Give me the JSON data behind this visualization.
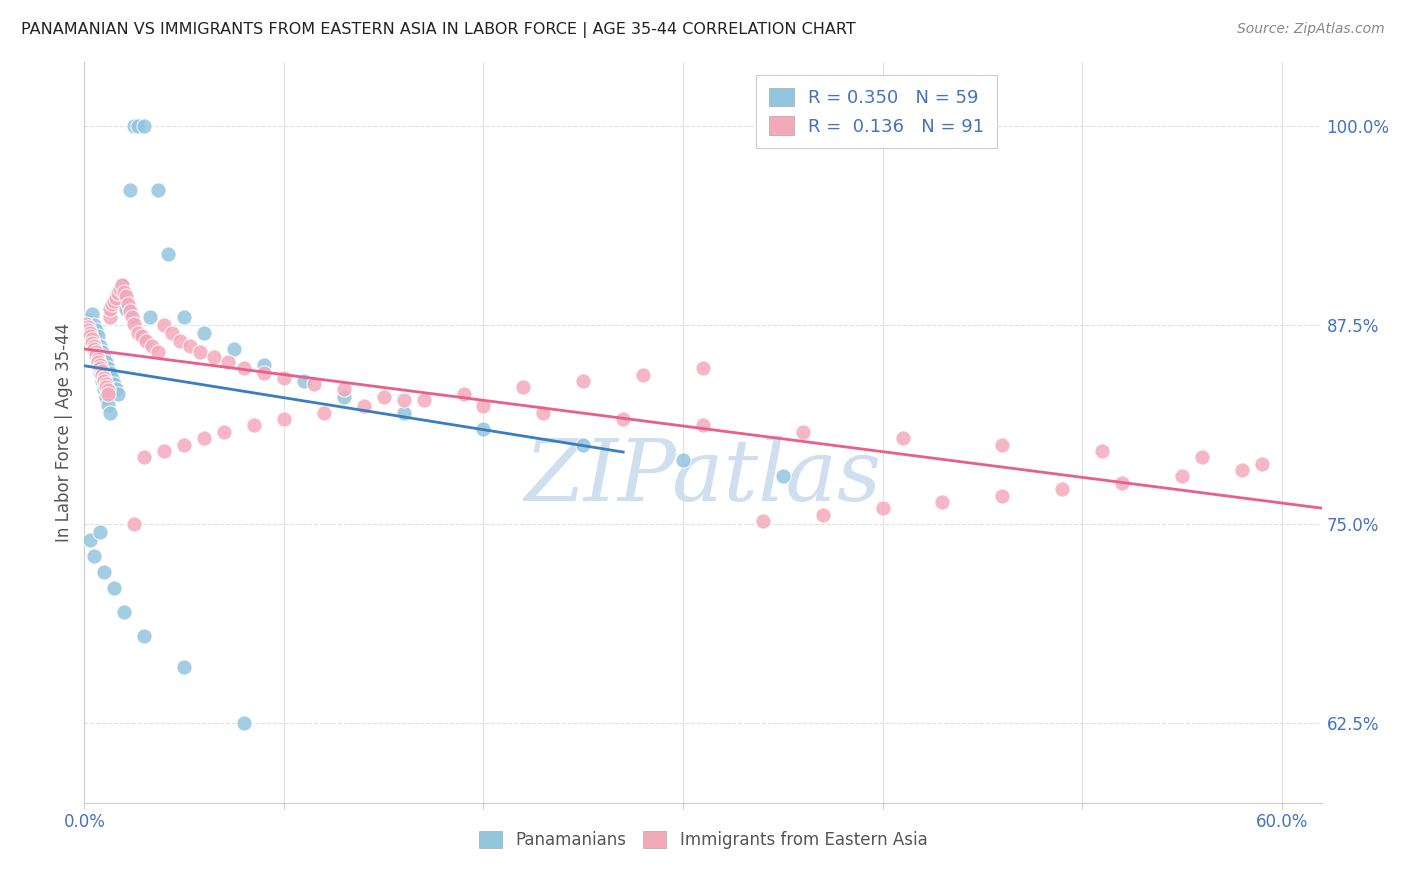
{
  "title": "PANAMANIAN VS IMMIGRANTS FROM EASTERN ASIA IN LABOR FORCE | AGE 35-44 CORRELATION CHART",
  "source": "Source: ZipAtlas.com",
  "ylabel": "In Labor Force | Age 35-44",
  "xlim": [
    0.0,
    0.62
  ],
  "ylim": [
    0.575,
    1.04
  ],
  "xtick_positions": [
    0.0,
    0.1,
    0.2,
    0.3,
    0.4,
    0.5,
    0.6
  ],
  "xtick_labels": [
    "0.0%",
    "",
    "",
    "",
    "",
    "",
    "60.0%"
  ],
  "ytick_positions": [
    0.625,
    0.75,
    0.875,
    1.0
  ],
  "ytick_labels": [
    "62.5%",
    "75.0%",
    "87.5%",
    "100.0%"
  ],
  "blue_R": 0.35,
  "blue_N": 59,
  "pink_R": 0.136,
  "pink_N": 91,
  "blue_color": "#92c5de",
  "pink_color": "#f4a9bb",
  "blue_line_color": "#3a7ebe",
  "pink_line_color": "#e8608a",
  "legend_text_color": "#4472c4",
  "title_color": "#222222",
  "source_color": "#888888",
  "ylabel_color": "#555555",
  "axis_tick_color": "#4472c4",
  "grid_color": "#e0e0e0",
  "watermark": "ZIPatlas",
  "watermark_color": "#d0dff0",
  "background_color": "#ffffff",
  "blue_scatter_x": [
    0.001,
    0.002,
    0.003,
    0.003,
    0.004,
    0.004,
    0.005,
    0.005,
    0.006,
    0.006,
    0.007,
    0.007,
    0.008,
    0.008,
    0.009,
    0.009,
    0.01,
    0.01,
    0.011,
    0.011,
    0.012,
    0.012,
    0.013,
    0.013,
    0.014,
    0.015,
    0.016,
    0.017,
    0.018,
    0.019,
    0.02,
    0.021,
    0.023,
    0.025,
    0.027,
    0.03,
    0.033,
    0.037,
    0.042,
    0.05,
    0.06,
    0.075,
    0.09,
    0.11,
    0.13,
    0.16,
    0.2,
    0.25,
    0.3,
    0.35,
    0.003,
    0.005,
    0.008,
    0.01,
    0.015,
    0.02,
    0.03,
    0.05,
    0.08
  ],
  "blue_scatter_y": [
    0.878,
    0.876,
    0.874,
    0.87,
    0.882,
    0.865,
    0.875,
    0.86,
    0.872,
    0.855,
    0.868,
    0.85,
    0.862,
    0.845,
    0.858,
    0.84,
    0.855,
    0.835,
    0.852,
    0.83,
    0.848,
    0.825,
    0.845,
    0.82,
    0.842,
    0.838,
    0.835,
    0.832,
    0.895,
    0.9,
    0.89,
    0.885,
    0.96,
    1.0,
    1.0,
    1.0,
    0.88,
    0.96,
    0.92,
    0.88,
    0.87,
    0.86,
    0.85,
    0.84,
    0.83,
    0.82,
    0.81,
    0.8,
    0.79,
    0.78,
    0.74,
    0.73,
    0.745,
    0.72,
    0.71,
    0.695,
    0.68,
    0.66,
    0.625
  ],
  "pink_scatter_x": [
    0.001,
    0.002,
    0.002,
    0.003,
    0.003,
    0.004,
    0.004,
    0.005,
    0.005,
    0.006,
    0.006,
    0.007,
    0.007,
    0.008,
    0.008,
    0.009,
    0.009,
    0.01,
    0.01,
    0.011,
    0.011,
    0.012,
    0.012,
    0.013,
    0.013,
    0.014,
    0.015,
    0.016,
    0.017,
    0.018,
    0.019,
    0.02,
    0.021,
    0.022,
    0.023,
    0.024,
    0.025,
    0.027,
    0.029,
    0.031,
    0.034,
    0.037,
    0.04,
    0.044,
    0.048,
    0.053,
    0.058,
    0.065,
    0.072,
    0.08,
    0.09,
    0.1,
    0.115,
    0.13,
    0.15,
    0.17,
    0.2,
    0.23,
    0.27,
    0.31,
    0.36,
    0.41,
    0.46,
    0.51,
    0.56,
    0.59,
    0.58,
    0.55,
    0.52,
    0.49,
    0.46,
    0.43,
    0.4,
    0.37,
    0.34,
    0.31,
    0.28,
    0.25,
    0.22,
    0.19,
    0.16,
    0.14,
    0.12,
    0.1,
    0.085,
    0.07,
    0.06,
    0.05,
    0.04,
    0.03,
    0.025
  ],
  "pink_scatter_y": [
    0.876,
    0.874,
    0.872,
    0.87,
    0.868,
    0.866,
    0.864,
    0.862,
    0.86,
    0.858,
    0.856,
    0.854,
    0.852,
    0.85,
    0.848,
    0.846,
    0.844,
    0.842,
    0.84,
    0.838,
    0.836,
    0.834,
    0.832,
    0.88,
    0.885,
    0.888,
    0.89,
    0.892,
    0.895,
    0.898,
    0.9,
    0.896,
    0.893,
    0.888,
    0.884,
    0.88,
    0.876,
    0.87,
    0.868,
    0.865,
    0.862,
    0.858,
    0.875,
    0.87,
    0.865,
    0.862,
    0.858,
    0.855,
    0.852,
    0.848,
    0.845,
    0.842,
    0.838,
    0.835,
    0.83,
    0.828,
    0.824,
    0.82,
    0.816,
    0.812,
    0.808,
    0.804,
    0.8,
    0.796,
    0.792,
    0.788,
    0.784,
    0.78,
    0.776,
    0.772,
    0.768,
    0.764,
    0.76,
    0.756,
    0.752,
    0.848,
    0.844,
    0.84,
    0.836,
    0.832,
    0.828,
    0.824,
    0.82,
    0.816,
    0.812,
    0.808,
    0.804,
    0.8,
    0.796,
    0.792,
    0.75
  ]
}
